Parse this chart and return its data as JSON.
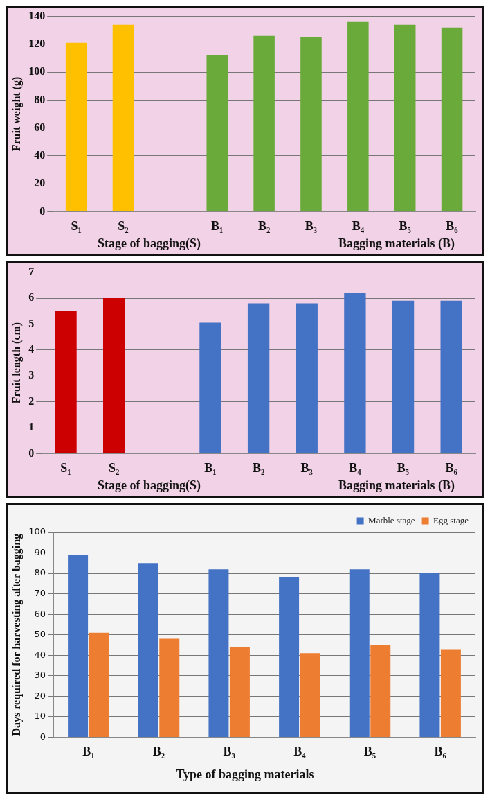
{
  "chart_data": [
    {
      "type": "bar",
      "categories": [
        "S₁",
        "S₂",
        null,
        "B₁",
        "B₂",
        "B₃",
        "B₄",
        "B₅",
        "B₆"
      ],
      "values": [
        121,
        134,
        null,
        112,
        126,
        125,
        136,
        134,
        132
      ],
      "colors": [
        "#ffc000",
        "#ffc000",
        "#ffc000",
        "#6aaa3a",
        "#6aaa3a",
        "#6aaa3a",
        "#6aaa3a",
        "#6aaa3a",
        "#6aaa3a"
      ],
      "ylabel": "Fruit weight (g)",
      "xlabel": "Bagging materials (B)",
      "annotations": [
        "Stage of bagging(S)"
      ],
      "ylim": [
        0,
        140
      ],
      "yticks": [
        0,
        20,
        40,
        60,
        80,
        100,
        120,
        140
      ],
      "grid": "y"
    },
    {
      "type": "bar",
      "categories": [
        "S₁",
        "S₂",
        null,
        "B₁",
        "B₂",
        "B₃",
        "B₄",
        "B₅",
        "B₆"
      ],
      "values": [
        5.5,
        6.0,
        null,
        5.05,
        5.8,
        5.8,
        6.2,
        5.9,
        5.9
      ],
      "colors": [
        "#cc0000",
        "#cc0000",
        "#cc0000",
        "#4472c4",
        "#4472c4",
        "#4472c4",
        "#4472c4",
        "#4472c4",
        "#4472c4"
      ],
      "ylabel": "Fruit length (cm)",
      "xlabel": "Bagging materials (B)",
      "annotations": [
        "Stage of bagging(S)"
      ],
      "ylim": [
        0,
        7
      ],
      "yticks": [
        0,
        1,
        2,
        3,
        4,
        5,
        6,
        7
      ],
      "grid": "y"
    },
    {
      "type": "bar",
      "categories": [
        "B₁",
        "B₂",
        "B₃",
        "B₄",
        "B₅",
        "B₆"
      ],
      "series": [
        {
          "name": "Marble stage",
          "color": "#4472c4",
          "values": [
            89,
            85,
            82,
            78,
            82,
            80
          ]
        },
        {
          "name": "Egg stage",
          "color": "#ed7d31",
          "values": [
            51,
            48,
            44,
            41,
            45,
            43
          ]
        }
      ],
      "ylabel": "Days required for harvesting after bagging",
      "xlabel": "Type of bagging materials",
      "ylim": [
        0,
        100
      ],
      "yticks": [
        0,
        10,
        20,
        30,
        40,
        50,
        60,
        70,
        80,
        90,
        100
      ],
      "grid": "y",
      "legend": "top right"
    }
  ]
}
